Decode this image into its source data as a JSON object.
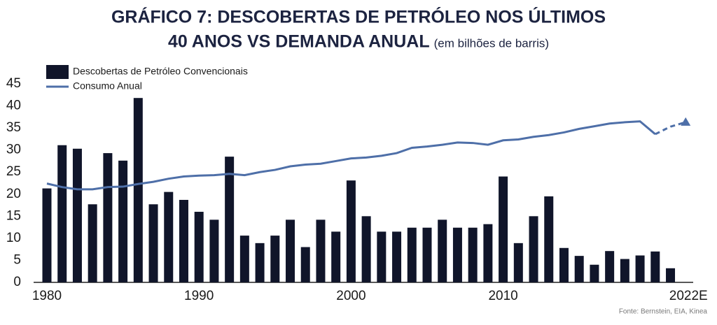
{
  "chart_data": {
    "type": "bar_line",
    "title_lines": [
      "GRÁFICO 7: DESCOBERTAS DE PETRÓLEO NOS ÚLTIMOS",
      "40 ANOS VS DEMANDA ANUAL"
    ],
    "subtitle": "(em bilhões de barris)",
    "source": "Fonte: Bernstein, EIA, Kinea",
    "categories": [
      "1980",
      null,
      null,
      null,
      null,
      null,
      null,
      null,
      null,
      null,
      "1990",
      null,
      null,
      null,
      null,
      null,
      null,
      null,
      null,
      null,
      "2000",
      null,
      null,
      null,
      null,
      null,
      null,
      null,
      null,
      null,
      "2010",
      null,
      null,
      null,
      null,
      null,
      null,
      null,
      null,
      null,
      null,
      null,
      "2022E"
    ],
    "series": [
      {
        "name": "Descobertas de Petróleo Convencionais",
        "kind": "bar",
        "color": "#10152a",
        "values": [
          21.3,
          31.1,
          30.3,
          17.7,
          29.3,
          27.6,
          41.8,
          17.7,
          20.5,
          18.7,
          16.0,
          14.2,
          28.5,
          10.6,
          8.9,
          10.6,
          14.2,
          8.0,
          14.2,
          11.5,
          23.1,
          15.0,
          11.5,
          11.5,
          12.4,
          12.4,
          14.2,
          12.4,
          12.4,
          13.2,
          24.0,
          8.9,
          15.0,
          19.5,
          7.8,
          6.0,
          4.0,
          7.1,
          5.3,
          6.1,
          7.0,
          3.2,
          null
        ]
      },
      {
        "name": "Consumo Anual",
        "kind": "line",
        "color": "#4e6fa8",
        "values": [
          22.4,
          21.6,
          21.1,
          21.1,
          21.6,
          21.7,
          22.3,
          22.8,
          23.5,
          24.0,
          24.2,
          24.3,
          24.6,
          24.3,
          25.0,
          25.5,
          26.3,
          26.7,
          26.9,
          27.5,
          28.1,
          28.3,
          28.7,
          29.3,
          30.5,
          30.8,
          31.2,
          31.7,
          31.6,
          31.2,
          32.2,
          32.4,
          33.0,
          33.4,
          34.0,
          34.8,
          35.4,
          36.0,
          36.3,
          36.5,
          33.6,
          35.3,
          36.3
        ]
      }
    ],
    "ylim": [
      0,
      45
    ],
    "yticks": [
      0,
      5,
      10,
      15,
      20,
      25,
      30,
      35,
      40,
      45
    ],
    "grid": false
  }
}
